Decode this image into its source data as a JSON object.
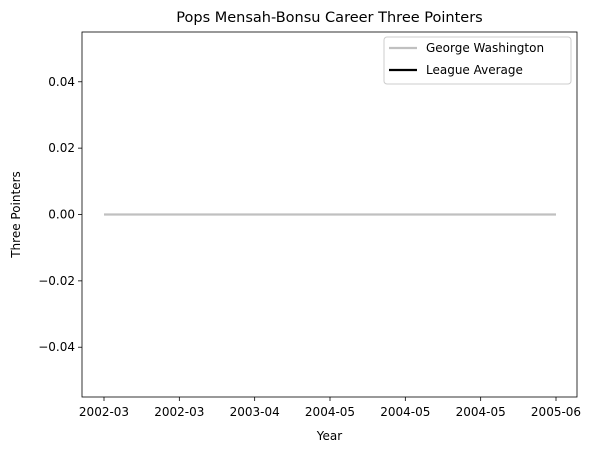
{
  "chart_data": {
    "type": "line",
    "title": "Pops Mensah-Bonsu Career Three Pointers",
    "xlabel": "Year",
    "ylabel": "Three Pointers",
    "x_ticks": [
      "2002-03",
      "2002-03",
      "2003-04",
      "2004-05",
      "2004-05",
      "2004-05",
      "2005-06"
    ],
    "ylim": [
      -0.055,
      0.055
    ],
    "y_ticks": [
      -0.04,
      -0.02,
      0.0,
      0.02,
      0.04
    ],
    "y_tick_labels": [
      "−0.04",
      "−0.02",
      "0.00",
      "0.02",
      "0.04"
    ],
    "series": [
      {
        "name": "George Washington",
        "color": "#c0c0c0",
        "x_index": [
          0,
          6
        ],
        "values": [
          0,
          0
        ]
      },
      {
        "name": "League Average",
        "color": "#000000",
        "x_index": [],
        "values": []
      }
    ],
    "grid": false,
    "legend_position": "top-right"
  }
}
